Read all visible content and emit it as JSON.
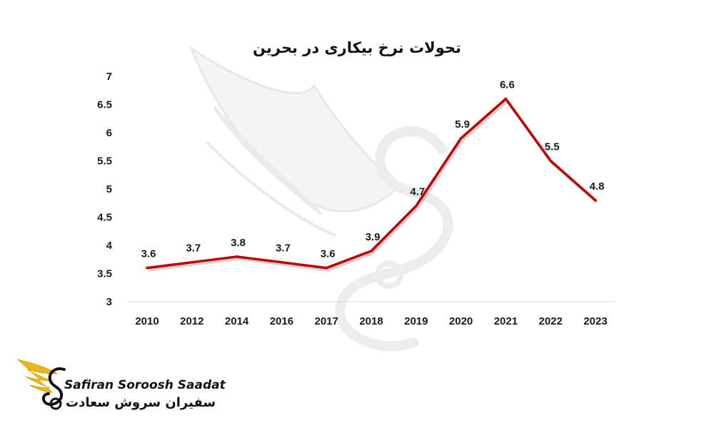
{
  "brand": {
    "name_en": "Safiran Soroosh Saadat",
    "name_fa": "سفیران سروش سعادت",
    "colors": {
      "gold": "#e8b81e",
      "dark": "#111111"
    }
  },
  "chart_data": {
    "type": "line",
    "title": "تحولات نرخ بیکاری در بحرین",
    "categories": [
      "2010",
      "2012",
      "2014",
      "2016",
      "2017",
      "2018",
      "2019",
      "2020",
      "2021",
      "2022",
      "2023"
    ],
    "series": [
      {
        "values": [
          3.6,
          3.7,
          3.8,
          3.7,
          3.6,
          3.9,
          4.7,
          5.9,
          6.6,
          5.5,
          4.8
        ],
        "color": "#c00000"
      }
    ],
    "data_labels": [
      "3.6",
      "3.7",
      "3.8",
      "3.7",
      "3.6",
      "3.9",
      "4.7",
      "5.9",
      "6.6",
      "5.5",
      "4.8"
    ],
    "y_ticks": [
      "3",
      "3.5",
      "4",
      "4.5",
      "5",
      "5.5",
      "6",
      "6.5",
      "7"
    ],
    "ylim": [
      3,
      7
    ],
    "grid": false,
    "legend": "none",
    "xlabel": "",
    "ylabel": ""
  }
}
